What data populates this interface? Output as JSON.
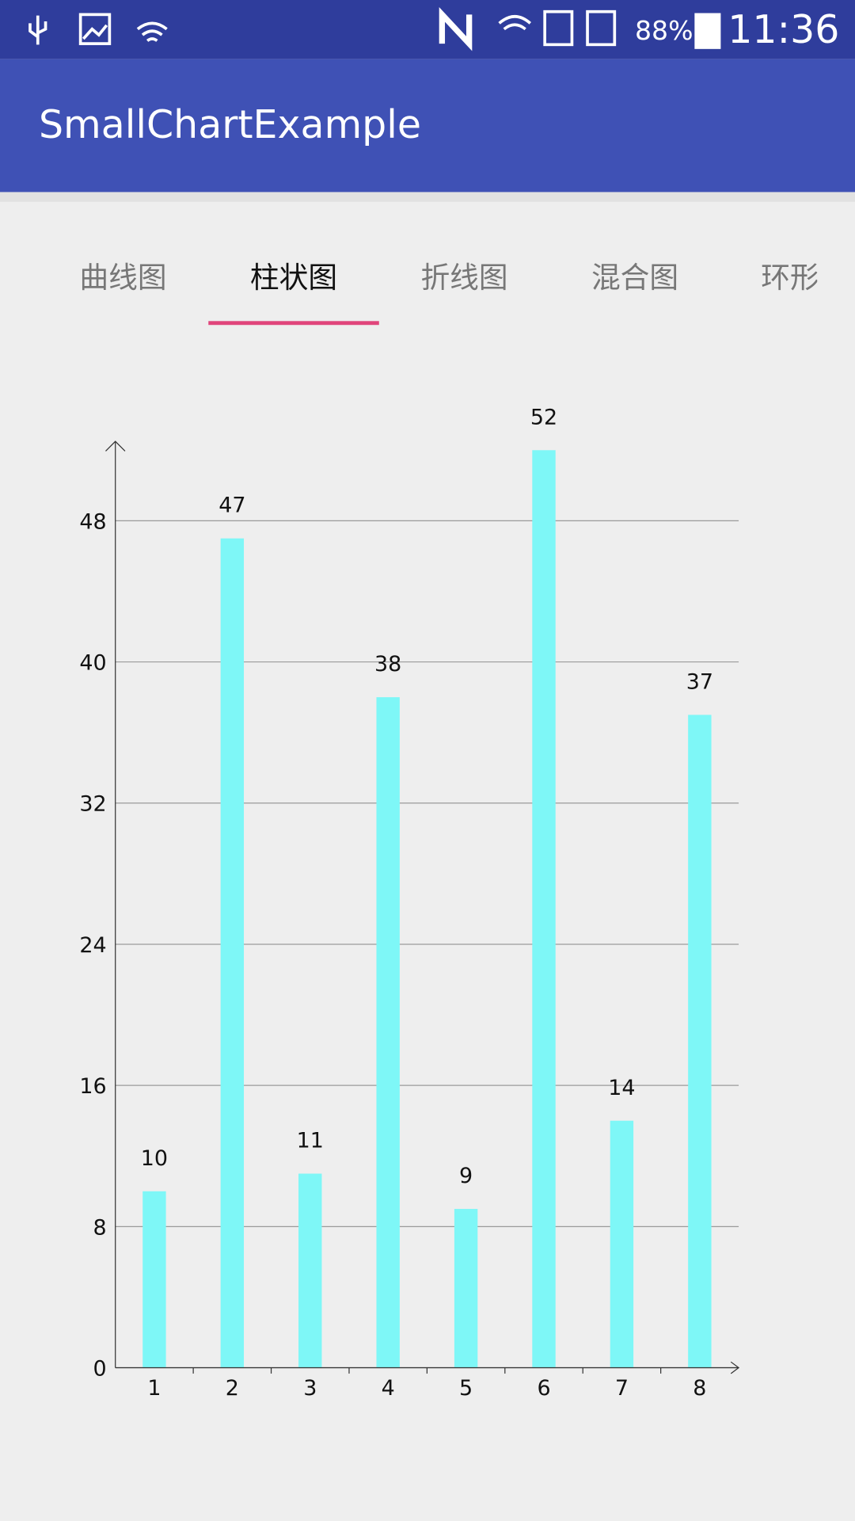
{
  "status_bar": {
    "battery": "88%",
    "time": "11:36"
  },
  "app_bar": {
    "title": "SmallChartExample"
  },
  "tabs": [
    "曲线图",
    "柱状图",
    "折线图",
    "混合图",
    "环形"
  ],
  "chart_data": {
    "type": "bar",
    "categories": [
      "1",
      "2",
      "3",
      "4",
      "5",
      "6",
      "7",
      "8"
    ],
    "values": [
      10,
      47,
      11,
      38,
      9,
      52,
      14,
      37
    ],
    "color": "#7ef7f7",
    "ylim": [
      0,
      52.5
    ],
    "yticks": [
      0,
      8,
      16,
      24,
      32,
      40,
      48
    ],
    "grid": true
  }
}
